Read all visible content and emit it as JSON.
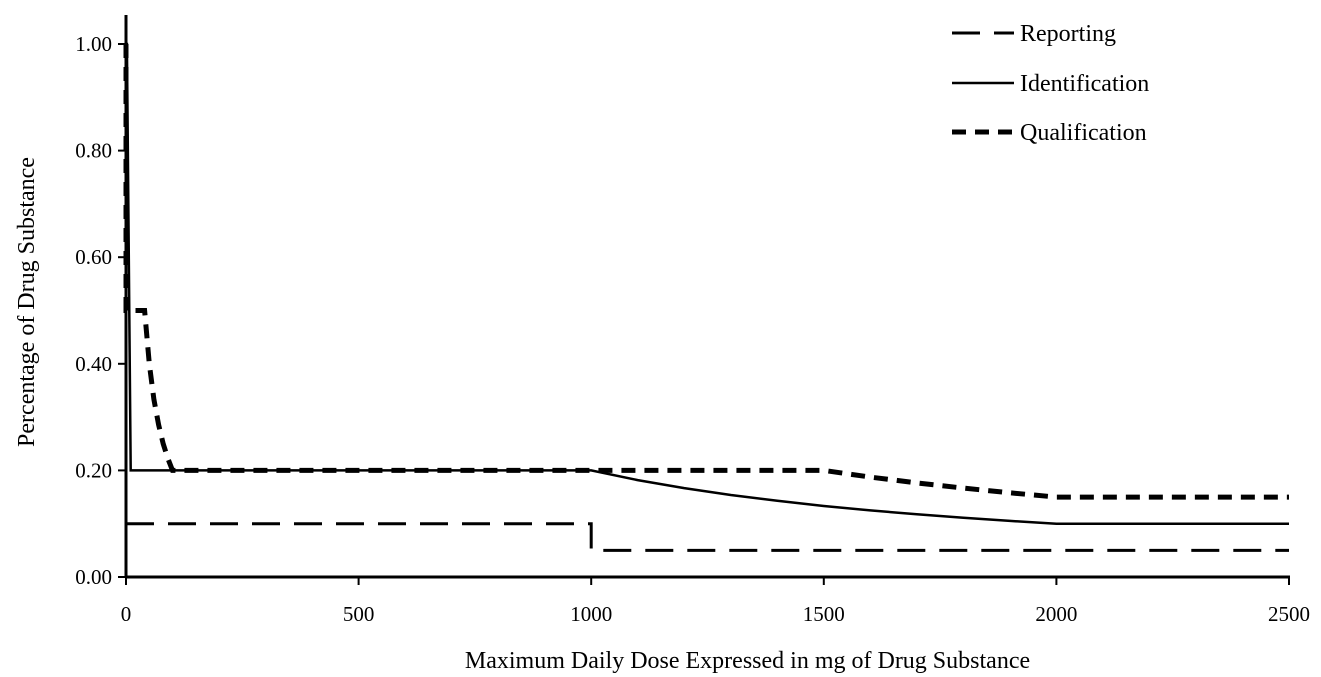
{
  "chart_data": {
    "type": "line",
    "xlabel": "Maximum Daily Dose Expressed in mg of Drug Substance",
    "ylabel": "Percentage of Drug Substance",
    "xlim": [
      0,
      2500
    ],
    "ylim": [
      0,
      1.05
    ],
    "xticks": [
      0,
      500,
      1000,
      1500,
      2000,
      2500
    ],
    "xtick_labels": [
      "0",
      "500",
      "1000",
      "1500",
      "2000",
      "2500"
    ],
    "yticks": [
      0,
      0.2,
      0.4,
      0.6,
      0.8,
      1.0
    ],
    "ytick_labels": [
      "0.00",
      "0.20",
      "0.40",
      "0.60",
      "0.80",
      "1.00"
    ],
    "grid": false,
    "legend_position": "top-right",
    "series": [
      {
        "name": "Reporting",
        "style": "long-dash",
        "color": "#000000",
        "points": [
          [
            0,
            0.1
          ],
          [
            1000,
            0.1
          ],
          [
            1000,
            0.05
          ],
          [
            2500,
            0.05
          ]
        ]
      },
      {
        "name": "Identification",
        "style": "solid",
        "color": "#000000",
        "points": [
          [
            0,
            1.0
          ],
          [
            2,
            1.0
          ],
          [
            10,
            0.2
          ],
          [
            1000,
            0.2
          ],
          [
            1100,
            0.1818
          ],
          [
            1200,
            0.1667
          ],
          [
            1300,
            0.1538
          ],
          [
            1400,
            0.1429
          ],
          [
            1500,
            0.1333
          ],
          [
            1600,
            0.125
          ],
          [
            1700,
            0.1176
          ],
          [
            1800,
            0.1111
          ],
          [
            1900,
            0.1053
          ],
          [
            2000,
            0.1
          ],
          [
            2500,
            0.1
          ]
        ]
      },
      {
        "name": "Qualification",
        "style": "short-dash",
        "color": "#000000",
        "points": [
          [
            0,
            1.0
          ],
          [
            0,
            0.5
          ],
          [
            40,
            0.5
          ],
          [
            50,
            0.4
          ],
          [
            60,
            0.3333
          ],
          [
            70,
            0.2857
          ],
          [
            80,
            0.25
          ],
          [
            90,
            0.2222
          ],
          [
            100,
            0.2
          ],
          [
            1500,
            0.2
          ],
          [
            1600,
            0.1875
          ],
          [
            1700,
            0.1765
          ],
          [
            1800,
            0.1667
          ],
          [
            1900,
            0.1579
          ],
          [
            2000,
            0.15
          ],
          [
            2500,
            0.15
          ]
        ]
      }
    ]
  }
}
